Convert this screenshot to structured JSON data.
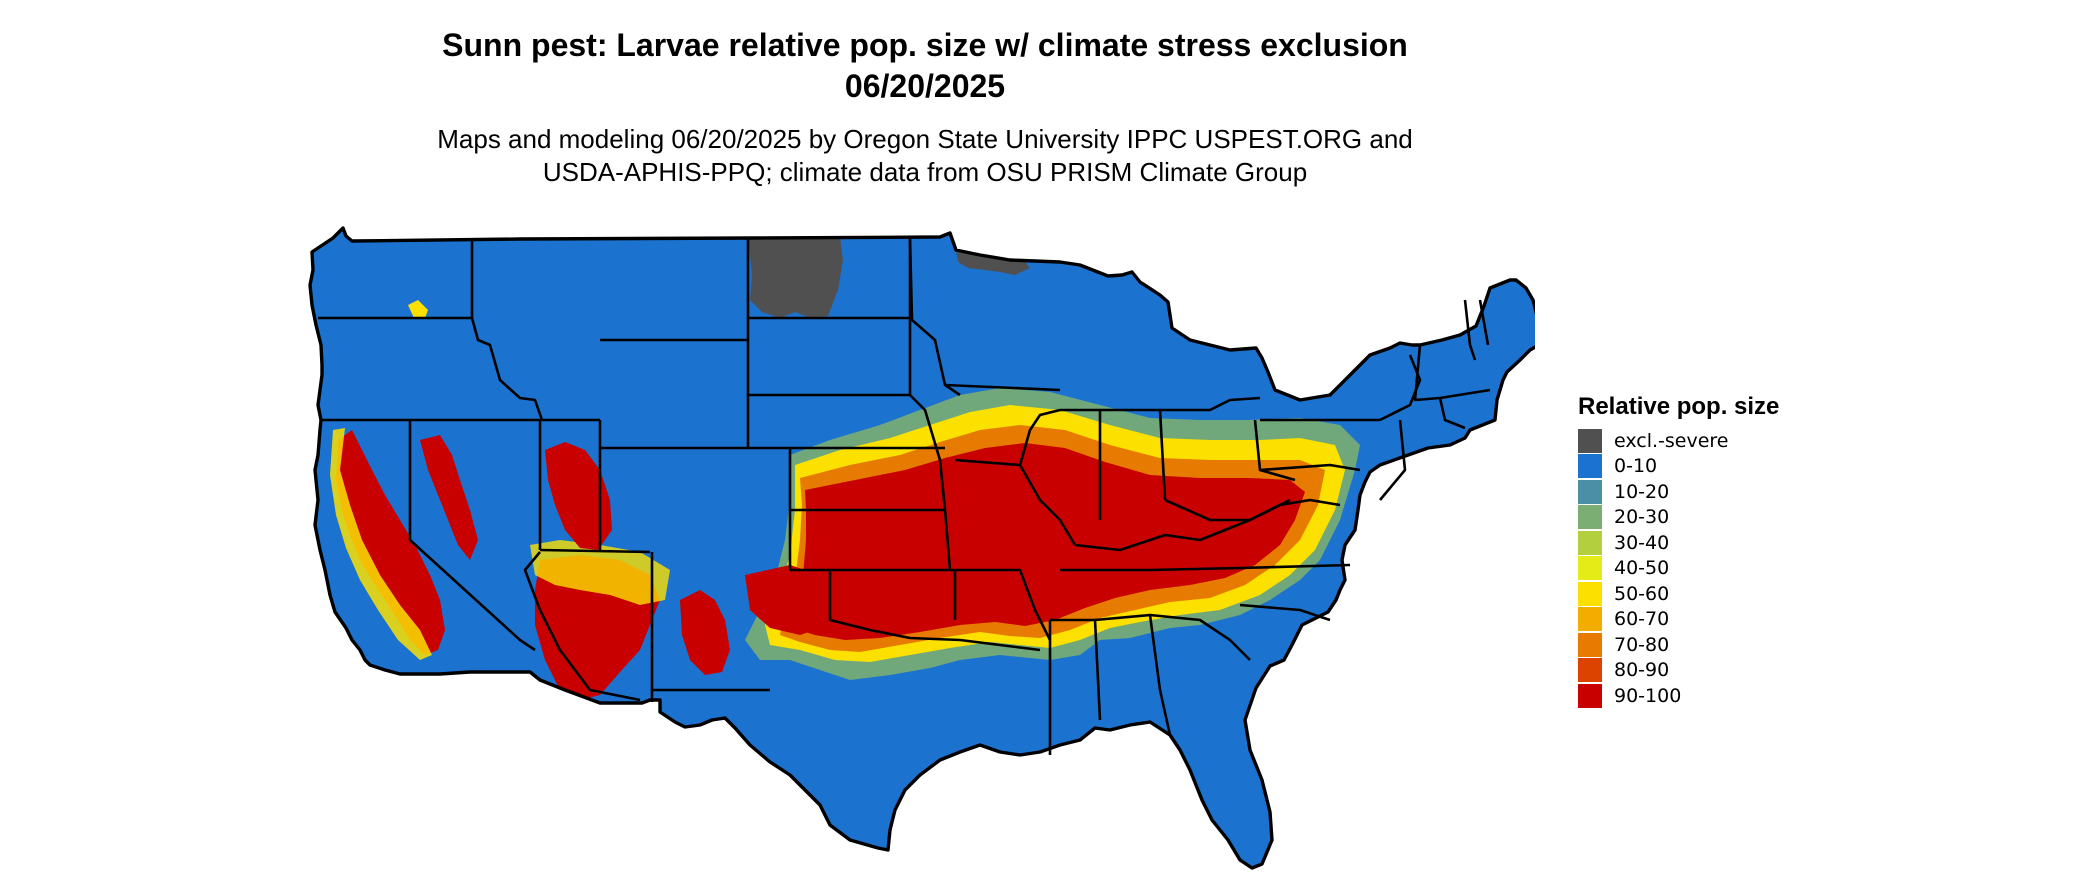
{
  "title_line1": "Sunn pest: Larvae relative pop. size w/ climate stress exclusion",
  "title_line2": "06/20/2025",
  "subtitle_line1": "Maps and modeling 06/20/2025 by Oregon State University IPPC USPEST.ORG and",
  "subtitle_line2": "USDA-APHIS-PPQ; climate data from OSU PRISM Climate Group",
  "legend": {
    "title": "Relative pop. size",
    "items": [
      {
        "label": "excl.-severe",
        "color": "#505050"
      },
      {
        "label": "0-10",
        "color": "#1c73cf"
      },
      {
        "label": "10-20",
        "color": "#4a8fa6"
      },
      {
        "label": "20-30",
        "color": "#7aae72"
      },
      {
        "label": "30-40",
        "color": "#b4cf3e"
      },
      {
        "label": "40-50",
        "color": "#e3ec16"
      },
      {
        "label": "50-60",
        "color": "#fbe000"
      },
      {
        "label": "60-70",
        "color": "#f3ac00"
      },
      {
        "label": "70-80",
        "color": "#e77a00"
      },
      {
        "label": "80-90",
        "color": "#dc4300"
      },
      {
        "label": "90-100",
        "color": "#c90000"
      }
    ]
  }
}
